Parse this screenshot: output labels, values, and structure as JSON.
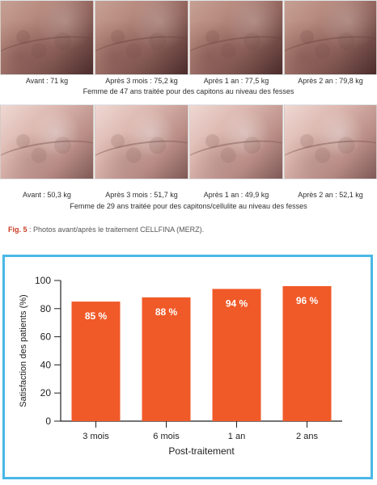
{
  "photos": {
    "row1": {
      "captions": [
        "Avant : 71 kg",
        "Après 3 mois : 75,2 kg",
        "Après 1 an : 77,5 kg",
        "Après 2 an : 79,8 kg"
      ],
      "description": "Femme de 47 ans traitée pour des capitons au niveau des fesses"
    },
    "row2": {
      "captions": [
        "Avant : 50,3 kg",
        "Après 3 mois : 51,7 kg",
        "Après 1 an : 49,9 kg",
        "Après 2 an : 52,1 kg"
      ],
      "description": "Femme de 29 ans traitée pour des capitons/cellulite au niveau des fesses"
    }
  },
  "figure_caption": {
    "label": "Fig. 5",
    "text": " : Photos avant/après le traitement CELLFINA (MERZ)."
  },
  "colors": {
    "bar": "#f05a28",
    "frame": "#4ab8e6",
    "axis": "#222222",
    "text": "#222222"
  },
  "chart_data": {
    "type": "bar",
    "categories": [
      "3 mois",
      "6 mois",
      "1 an",
      "2 ans"
    ],
    "values": [
      85,
      88,
      94,
      96
    ],
    "data_labels": [
      "85 %",
      "88 %",
      "94 %",
      "96 %"
    ],
    "title": "",
    "xlabel": "Post-traitement",
    "ylabel": "Satisfaction des patients (%)",
    "ylim": [
      0,
      100
    ],
    "yticks": [
      0,
      20,
      40,
      60,
      80,
      100
    ],
    "grid": false,
    "legend": "none"
  }
}
